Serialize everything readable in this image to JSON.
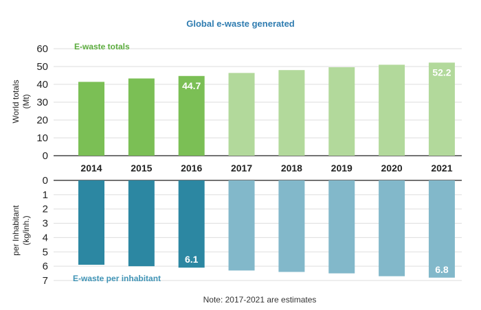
{
  "chart_data": {
    "type": "bar",
    "title": "Global e-waste generated",
    "categories": [
      "2014",
      "2015",
      "2016",
      "2017",
      "2018",
      "2019",
      "2020",
      "2021"
    ],
    "estimated_from_index": 3,
    "note": "Note: 2017-2021 are estimates",
    "colors": {
      "top_actual": "#7bbf55",
      "top_estimate": "#b2d99b",
      "top_label": "#5aab3c",
      "bottom_actual": "#2c87a2",
      "bottom_estimate": "#82b8ca",
      "bottom_label": "#3f93b5",
      "title": "#2f7cb0"
    },
    "top": {
      "series_name": "E-waste totals",
      "ylabel_line1": "World totals",
      "ylabel_line2": "(Mt)",
      "ylim": [
        0,
        60
      ],
      "yticks": [
        "0",
        "10",
        "20",
        "30",
        "40",
        "50",
        "60"
      ],
      "values": [
        41.4,
        43.3,
        44.7,
        46.4,
        48.0,
        49.6,
        51.0,
        52.2
      ],
      "data_labels": [
        {
          "index": 2,
          "text": "44.7"
        },
        {
          "index": 7,
          "text": "52.2"
        }
      ]
    },
    "bottom": {
      "series_name": "E-waste per inhabitant",
      "ylabel_line1": "per Inhabitant",
      "ylabel_line2": "(kg/inh.)",
      "ylim": [
        0,
        7
      ],
      "inverted": true,
      "yticks": [
        "0",
        "1",
        "2",
        "3",
        "4",
        "5",
        "6",
        "7"
      ],
      "values": [
        5.9,
        6.0,
        6.1,
        6.3,
        6.4,
        6.5,
        6.7,
        6.8
      ],
      "data_labels": [
        {
          "index": 2,
          "text": "6.1"
        },
        {
          "index": 7,
          "text": "6.8"
        }
      ]
    }
  }
}
